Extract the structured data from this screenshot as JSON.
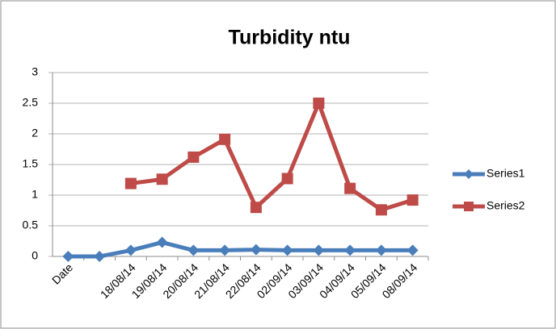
{
  "chart_data": {
    "type": "line",
    "title": "Turbidity ntu",
    "categories": [
      "Date",
      null,
      "18/08/14",
      "19/08/14",
      "20/08/14",
      "21/08/14",
      "22/08/14",
      "02/09/14",
      "03/09/14",
      "04/09/14",
      "05/09/14",
      "08/09/14"
    ],
    "series": [
      {
        "name": "Series1",
        "color": "#4a7ebb",
        "marker": "diamond",
        "values": [
          0,
          0,
          0.1,
          0.23,
          0.1,
          0.1,
          0.11,
          0.1,
          0.1,
          0.1,
          0.1,
          0.1
        ]
      },
      {
        "name": "Series2",
        "color": "#be4b48",
        "marker": "square",
        "values": [
          null,
          null,
          1.19,
          1.26,
          1.62,
          1.91,
          0.8,
          1.27,
          2.5,
          1.11,
          0.76,
          0.92
        ]
      }
    ],
    "ylim": [
      0,
      3
    ],
    "yticks": [
      0,
      0.5,
      1,
      1.5,
      2,
      2.5,
      3
    ],
    "grid": true,
    "legend": "right"
  }
}
